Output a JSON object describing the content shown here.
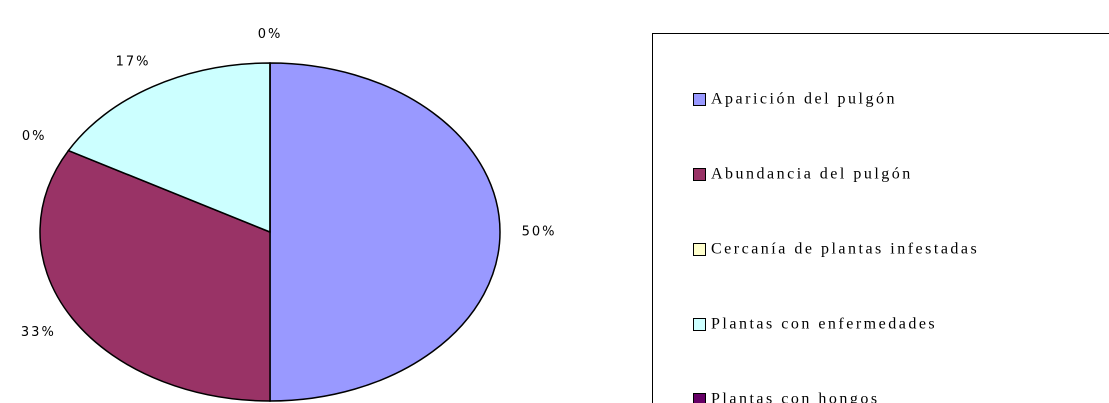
{
  "chart_data": {
    "type": "pie",
    "categories": [
      "Aparición del pulgón",
      "Abundancia del pulgón",
      "Cercanía de plantas infestadas",
      "Plantas con enfermedades",
      "Plantas con hongos"
    ],
    "values": [
      50,
      33,
      0,
      17,
      0
    ],
    "value_labels": [
      "50%",
      "33%",
      "0%",
      "17%",
      "0%"
    ],
    "colors": [
      "#9999ff",
      "#993366",
      "#ffffcc",
      "#ccffff",
      "#660066"
    ],
    "legend": "right"
  }
}
